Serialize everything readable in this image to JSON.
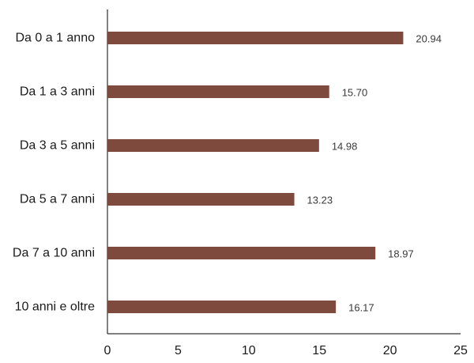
{
  "chart_data": {
    "type": "bar",
    "orientation": "horizontal",
    "title": "",
    "xlabel": "",
    "ylabel": "",
    "categories": [
      "Da 0 a 1 anno",
      "Da 1 a 3 anni",
      "Da 3 a 5 anni",
      "Da 5 a 7 anni",
      "Da 7 a 10 anni",
      "10 anni e oltre"
    ],
    "values": [
      20.94,
      15.7,
      14.98,
      13.23,
      18.97,
      16.17
    ],
    "value_labels": [
      "20.94",
      "15.70",
      "14.98",
      "13.23",
      "18.97",
      "16.17"
    ],
    "xlim": [
      0,
      25
    ],
    "x_ticks": [
      0,
      5,
      10,
      15,
      20,
      25
    ],
    "x_tick_labels": [
      "0",
      "5",
      "10",
      "15",
      "20",
      "25"
    ],
    "grid": false,
    "legend": "none",
    "bar_color": "#7f4a3e"
  }
}
